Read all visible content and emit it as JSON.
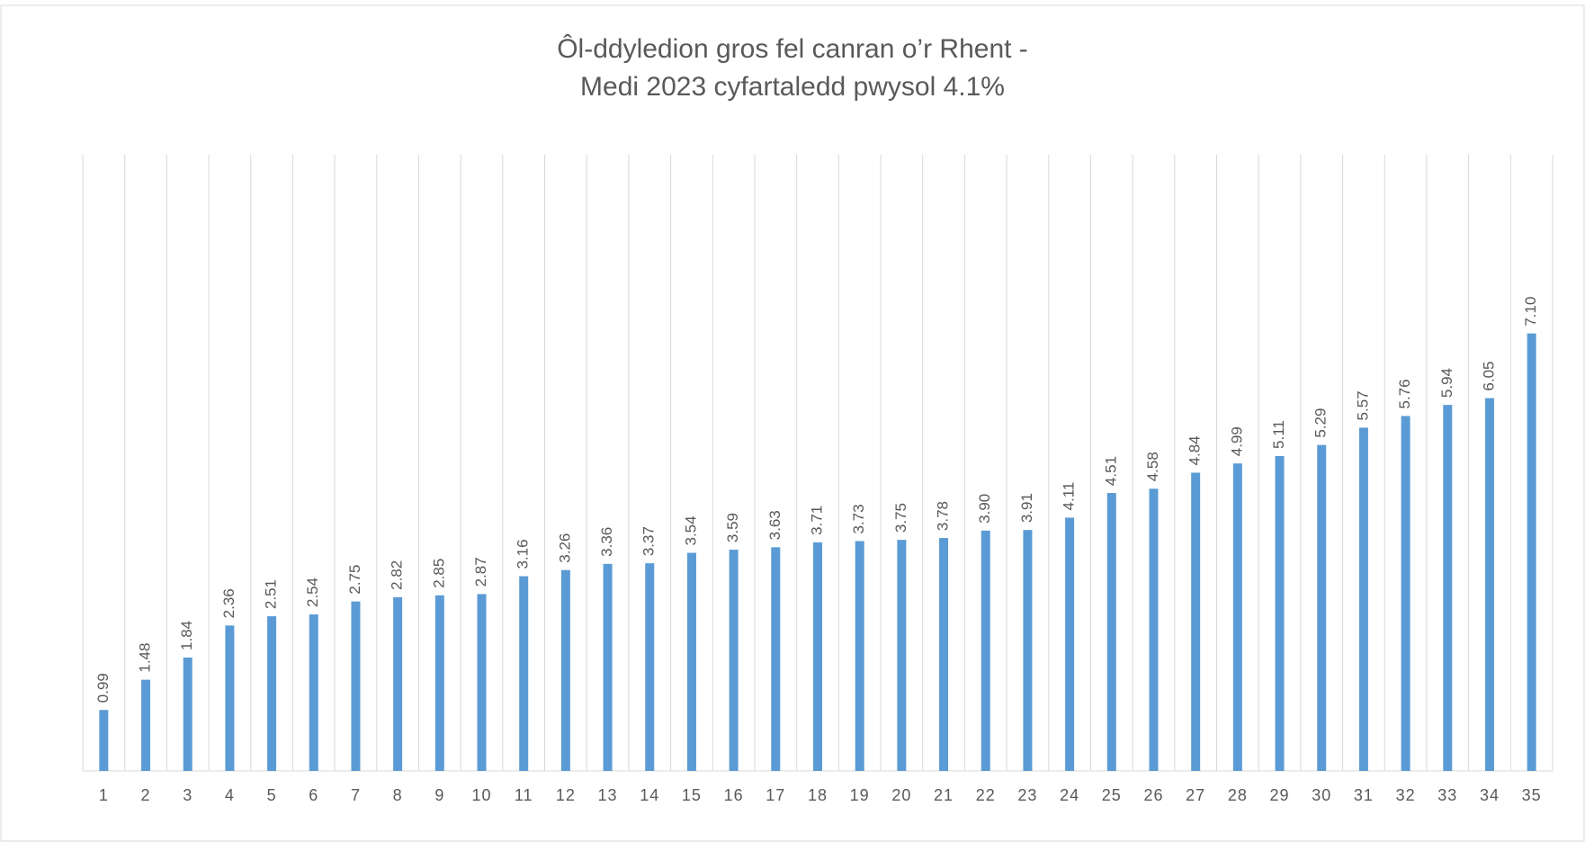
{
  "chart_data": {
    "type": "bar",
    "title": [
      "Ôl-ddyledion gros fel canran o’r Rhent -",
      "Medi 2023 cyfartaledd pwysol 4.1%"
    ],
    "categories": [
      "1",
      "2",
      "3",
      "4",
      "5",
      "6",
      "7",
      "8",
      "9",
      "10",
      "11",
      "12",
      "13",
      "14",
      "15",
      "16",
      "17",
      "18",
      "19",
      "20",
      "21",
      "22",
      "23",
      "24",
      "25",
      "26",
      "27",
      "28",
      "29",
      "30",
      "31",
      "32",
      "33",
      "34",
      "35"
    ],
    "values": [
      0.99,
      1.48,
      1.84,
      2.36,
      2.51,
      2.54,
      2.75,
      2.82,
      2.85,
      2.87,
      3.16,
      3.26,
      3.36,
      3.37,
      3.54,
      3.59,
      3.63,
      3.71,
      3.73,
      3.75,
      3.78,
      3.9,
      3.91,
      4.11,
      4.51,
      4.58,
      4.84,
      4.99,
      5.11,
      5.29,
      5.57,
      5.76,
      5.94,
      6.05,
      7.1
    ],
    "value_labels": [
      "0.99",
      "1.48",
      "1.84",
      "2.36",
      "2.51",
      "2.54",
      "2.75",
      "2.82",
      "2.85",
      "2.87",
      "3.16",
      "3.26",
      "3.36",
      "3.37",
      "3.54",
      "3.59",
      "3.63",
      "3.71",
      "3.73",
      "3.75",
      "3.78",
      "3.90",
      "3.91",
      "4.11",
      "4.51",
      "4.58",
      "4.84",
      "4.99",
      "5.11",
      "5.29",
      "5.57",
      "5.76",
      "5.94",
      "6.05",
      "7.10"
    ],
    "color": "#5b9bd5",
    "ylim": [
      0,
      10
    ],
    "grid": true
  }
}
